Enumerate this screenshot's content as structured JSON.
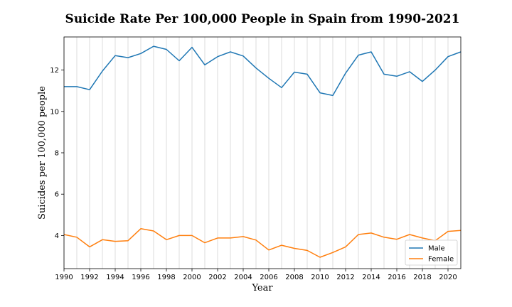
{
  "chart_data": {
    "type": "line",
    "title": "Suicide Rate Per 100,000 People in Spain from 1990-2021",
    "xlabel": "Year",
    "ylabel": "Suicides per 100,000 people",
    "xlim": [
      1990,
      2021
    ],
    "ylim": [
      2.4,
      13.6
    ],
    "xticks": [
      "1990",
      "1992",
      "1994",
      "1996",
      "1998",
      "2000",
      "2002",
      "2004",
      "2006",
      "2008",
      "2010",
      "2012",
      "2014",
      "2016",
      "2018",
      "2020"
    ],
    "yticks": [
      "4",
      "6",
      "8",
      "10",
      "12"
    ],
    "grid": "vertical",
    "legend_position": "bottom-right",
    "x": [
      1990,
      1991,
      1992,
      1993,
      1994,
      1995,
      1996,
      1997,
      1998,
      1999,
      2000,
      2001,
      2002,
      2003,
      2004,
      2005,
      2006,
      2007,
      2008,
      2009,
      2010,
      2011,
      2012,
      2013,
      2014,
      2015,
      2016,
      2017,
      2018,
      2019,
      2020,
      2021
    ],
    "series": [
      {
        "name": "Male",
        "color": "#1f77b4",
        "values": [
          11.2,
          11.2,
          11.05,
          11.95,
          12.7,
          12.6,
          12.8,
          13.15,
          13.0,
          12.45,
          13.1,
          12.25,
          12.65,
          12.88,
          12.68,
          12.1,
          11.6,
          11.15,
          11.9,
          11.8,
          10.9,
          10.77,
          11.85,
          12.72,
          12.88,
          11.8,
          11.7,
          11.92,
          11.45,
          12.0,
          12.65,
          12.88
        ]
      },
      {
        "name": "Female",
        "color": "#ff7f0e",
        "values": [
          4.05,
          3.92,
          3.45,
          3.8,
          3.72,
          3.75,
          4.33,
          4.22,
          3.8,
          4.0,
          4.0,
          3.65,
          3.88,
          3.88,
          3.95,
          3.78,
          3.3,
          3.53,
          3.38,
          3.28,
          2.95,
          3.18,
          3.45,
          4.05,
          4.12,
          3.92,
          3.82,
          4.05,
          3.88,
          3.75,
          4.2,
          4.25
        ]
      }
    ]
  }
}
